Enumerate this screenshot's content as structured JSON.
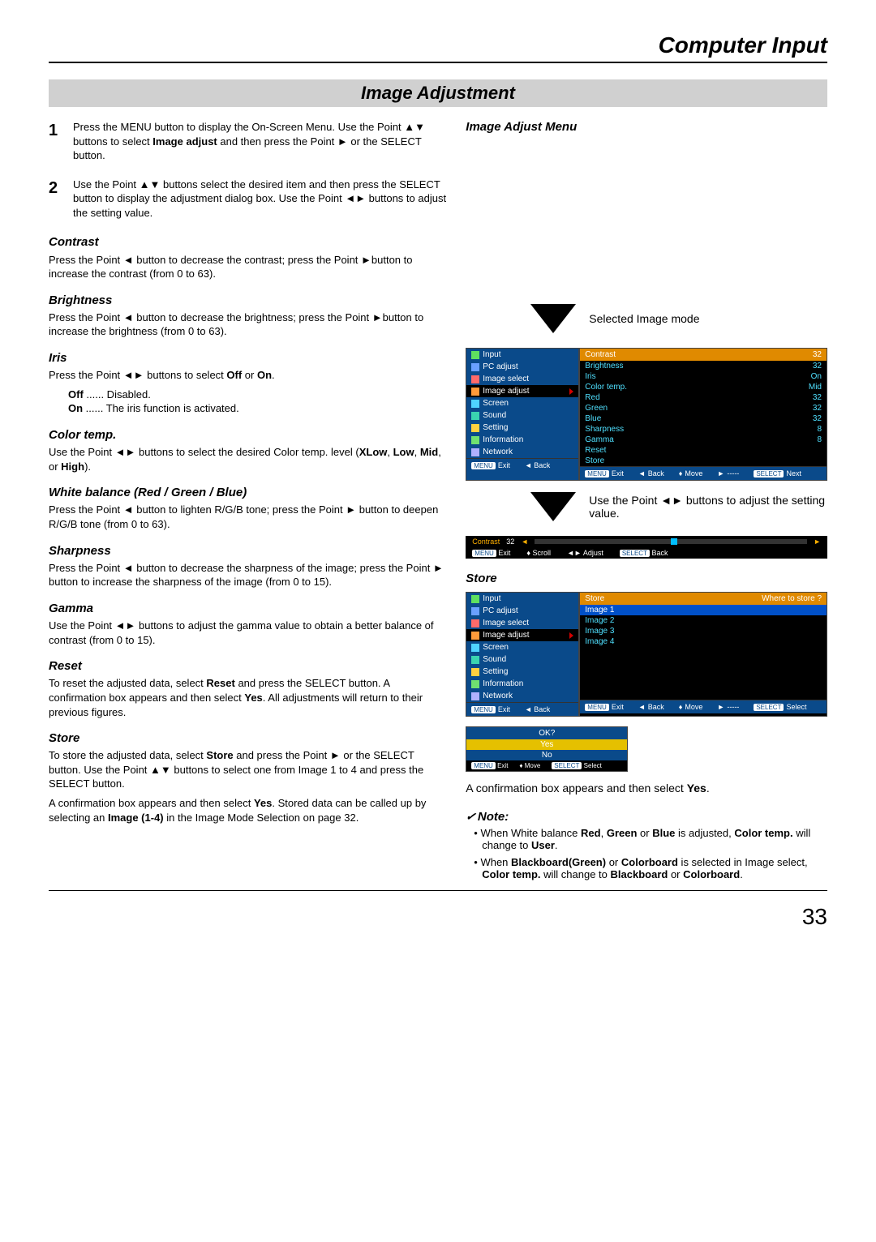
{
  "header": {
    "title": "Computer Input",
    "section": "Image Adjustment",
    "page_number": "33"
  },
  "steps": {
    "s1": {
      "num": "1",
      "text": "Press the MENU button to display the On-Screen Menu.  Use the Point ▲▼ buttons to select <b>Image adjust</b> and then press the Point ► or the SELECT button."
    },
    "s2": {
      "num": "2",
      "text": "Use the Point ▲▼ buttons select the desired item and then press the SELECT button to display the adjustment dialog box.  Use the Point ◄► buttons to adjust the setting value."
    }
  },
  "sections": {
    "contrast": {
      "head": "Contrast",
      "text": "Press the Point ◄ button to decrease the contrast; press the Point ►button to increase the contrast (from 0 to 63)."
    },
    "brightness": {
      "head": "Brightness",
      "text": "Press the Point ◄ button to decrease the brightness; press  the Point ►button to increase the brightness (from 0 to 63)."
    },
    "iris": {
      "head": "Iris",
      "text": "Press the Point ◄► buttons to select <b>Off</b> or <b>On</b>.",
      "off_label": "Off",
      "off_desc": " ...... Disabled.",
      "on_label": "On",
      "on_desc": " ...... The iris function is activated."
    },
    "colortemp": {
      "head": "Color temp.",
      "text": "Use the Point ◄► buttons to select the desired Color temp. level (<b>XLow</b>, <b>Low</b>, <b>Mid</b>, or <b>High</b>)."
    },
    "whitebalance": {
      "head": "White balance (Red / Green / Blue)",
      "text": "Press the Point ◄ button to lighten R/G/B tone; press the Point ► button to deepen R/G/B tone (from 0 to 63)."
    },
    "sharpness": {
      "head": "Sharpness",
      "text": "Press the Point ◄ button to decrease the sharpness of the image; press the Point ► button to increase the sharpness of the image (from 0 to 15)."
    },
    "gamma": {
      "head": "Gamma",
      "text": "Use the Point ◄► buttons to adjust the gamma value to obtain a better balance of contrast (from 0 to 15)."
    },
    "reset": {
      "head": "Reset",
      "text": "To reset the adjusted data, select <b>Reset</b> and press the SELECT button. A confirmation box appears and then select <b>Yes</b>. All adjustments will return to their previous figures."
    },
    "store": {
      "head": "Store",
      "p1": "To store the adjusted data, select <b>Store</b> and press the Point ► or the SELECT button. Use the Point ▲▼ buttons to select one from Image 1 to 4 and press the SELECT button.",
      "p2": "A confirmation box appears and then select <b>Yes</b>. Stored data can be called up by selecting an <b>Image (1-4)</b> in the Image Mode Selection on page 32."
    }
  },
  "right": {
    "menu_head": "Image Adjust Menu",
    "selected_label": "Selected Image mode",
    "use_point_text": "Use the Point ◄► buttons to adjust the setting value.",
    "store_head": "Store",
    "confirm_text": "A confirmation box appears and then select <b>Yes</b>."
  },
  "osd": {
    "left_menu": [
      "Input",
      "PC adjust",
      "Image select",
      "Image adjust",
      "Screen",
      "Sound",
      "Setting",
      "Information",
      "Network"
    ],
    "icon_colors": [
      "#5fe05f",
      "#6aa0ff",
      "#ff6a6a",
      "#ff9a3a",
      "#4fd4ff",
      "#3ad4b0",
      "#ffd040",
      "#70e070",
      "#b0b0ff"
    ],
    "adjust_items": [
      {
        "name": "Contrast",
        "val": "32",
        "sel": true
      },
      {
        "name": "Brightness",
        "val": "32"
      },
      {
        "name": "Iris",
        "val": "On"
      },
      {
        "name": "Color temp.",
        "val": "Mid"
      },
      {
        "name": "Red",
        "val": "32"
      },
      {
        "name": "Green",
        "val": "32"
      },
      {
        "name": "Blue",
        "val": "32"
      },
      {
        "name": "Sharpness",
        "val": "8"
      },
      {
        "name": "Gamma",
        "val": "8"
      },
      {
        "name": "Reset",
        "val": ""
      },
      {
        "name": "Store",
        "val": ""
      }
    ],
    "footer1": {
      "exit": "Exit",
      "back": "Back",
      "move": "Move",
      "dash": "-----",
      "next": "Next"
    },
    "contrast_bar": {
      "label": "Contrast",
      "val": "32",
      "exit": "Exit",
      "scroll": "Scroll",
      "adjust": "Adjust",
      "back": "Back"
    },
    "store_head": {
      "title": "Store",
      "where": "Where to store ?"
    },
    "store_items": [
      "Image 1",
      "Image 2",
      "Image 3",
      "Image 4"
    ],
    "footer2": {
      "exit": "Exit",
      "back": "Back",
      "move": "Move",
      "dash": "-----",
      "select": "Select"
    },
    "ok": {
      "head": "OK?",
      "yes": "Yes",
      "no": "No",
      "exit": "Exit",
      "move": "Move",
      "select": "Select"
    }
  },
  "note": {
    "head": "Note:",
    "items": [
      "When White balance <b>Red</b>, <b>Green</b> or <b>Blue</b> is adjusted, <b>Color temp.</b> will change to <b>User</b>.",
      "When <b>Blackboard(Green)</b> or <b>Colorboard</b> is selected in Image select, <b>Color temp.</b> will change to <b>Blackboard</b> or <b>Colorboard</b>."
    ]
  },
  "badges": {
    "menu": "MENU",
    "select": "SELECT"
  }
}
